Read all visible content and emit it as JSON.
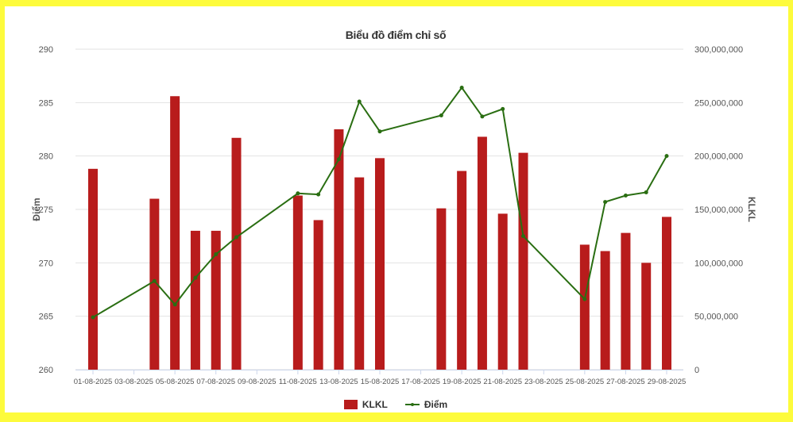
{
  "chart_data": {
    "type": "bar+line",
    "title": "Biểu đồ điểm chỉ số",
    "xlabel": "",
    "y_left_label": "Điểm",
    "y_right_label": "KLKL",
    "y_left_ticks": [
      "260",
      "265",
      "270",
      "275",
      "280",
      "285",
      "290"
    ],
    "y_left_range": [
      260,
      290
    ],
    "y_right_ticks": [
      "0",
      "50,000,000",
      "100,000,000",
      "150,000,000",
      "200,000,000",
      "250,000,000",
      "300,000,000"
    ],
    "y_right_range": [
      0,
      300000000
    ],
    "x_tick_labels": [
      "01-08-2025",
      "03-08-2025",
      "05-08-2025",
      "07-08-2025",
      "09-08-2025",
      "11-08-2025",
      "13-08-2025",
      "15-08-2025",
      "17-08-2025",
      "19-08-2025",
      "21-08-2025",
      "23-08-2025",
      "25-08-2025",
      "27-08-2025",
      "29-08-2025"
    ],
    "x_range_days": [
      1,
      29
    ],
    "grid": true,
    "legend_position": "bottom",
    "categories": [
      "01-08-2025",
      "04-08-2025",
      "05-08-2025",
      "06-08-2025",
      "07-08-2025",
      "08-08-2025",
      "11-08-2025",
      "12-08-2025",
      "13-08-2025",
      "14-08-2025",
      "15-08-2025",
      "18-08-2025",
      "19-08-2025",
      "20-08-2025",
      "21-08-2025",
      "22-08-2025",
      "25-08-2025",
      "26-08-2025",
      "27-08-2025",
      "28-08-2025",
      "29-08-2025"
    ],
    "days": [
      1,
      4,
      5,
      6,
      7,
      8,
      11,
      12,
      13,
      14,
      15,
      18,
      19,
      20,
      21,
      22,
      25,
      26,
      27,
      28,
      29
    ],
    "series": [
      {
        "name": "KLKL",
        "type": "bar",
        "axis": "right",
        "color": "#b81c1c",
        "values": [
          188000000,
          160000000,
          256000000,
          130000000,
          130000000,
          217000000,
          163000000,
          140000000,
          225000000,
          180000000,
          198000000,
          151000000,
          186000000,
          218000000,
          146000000,
          203000000,
          117000000,
          111000000,
          128000000,
          100000000,
          143000000
        ]
      },
      {
        "name": "Điểm",
        "type": "line",
        "axis": "left",
        "color": "#2a6e12",
        "values": [
          264.9,
          268.3,
          266.1,
          268.6,
          270.8,
          272.4,
          276.5,
          276.4,
          279.7,
          285.1,
          282.3,
          283.8,
          286.4,
          283.7,
          284.4,
          272.5,
          266.6,
          275.7,
          276.3,
          276.6,
          280.0
        ]
      }
    ]
  },
  "legend": {
    "bar_label": "KLKL",
    "line_label": "Điểm"
  }
}
